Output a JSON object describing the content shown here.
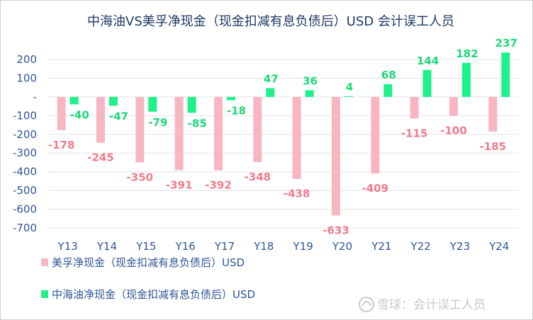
{
  "chart_data": {
    "type": "bar",
    "title": "中海油VS美孚净现金（现金扣减有息负债后）USD 会计误工人员",
    "categories": [
      "Y13",
      "Y14",
      "Y15",
      "Y16",
      "Y17",
      "Y18",
      "Y19",
      "Y20",
      "Y21",
      "Y22",
      "Y23",
      "Y24"
    ],
    "series": [
      {
        "name": "美孚净现金（现金扣减有息负债后）USD",
        "color": "#f7b6c2",
        "label_color": "#f07c8c",
        "values": [
          -178,
          -245,
          -350,
          -391,
          -392,
          -348,
          -438,
          -633,
          -409,
          -115,
          -100,
          -185
        ]
      },
      {
        "name": "中海油净现金（现金扣减有息负债后）USD",
        "color": "#1ef08a",
        "label_color": "#1ed87a",
        "values": [
          -40,
          -47,
          -79,
          -85,
          -18,
          47,
          36,
          4,
          68,
          144,
          182,
          237
        ]
      }
    ],
    "y_ticks": [
      {
        "value": 200,
        "label": "200"
      },
      {
        "value": 100,
        "label": "100"
      },
      {
        "value": 0,
        "label": "-"
      },
      {
        "value": -100,
        "label": "-100"
      },
      {
        "value": -200,
        "label": "-200"
      },
      {
        "value": -300,
        "label": "-300"
      },
      {
        "value": -400,
        "label": "-400"
      },
      {
        "value": -500,
        "label": "-500"
      },
      {
        "value": -600,
        "label": "-600"
      },
      {
        "value": -700,
        "label": "-700"
      }
    ],
    "ylim": [
      -700,
      200
    ],
    "grid": true,
    "legend_position": "bottom-left"
  },
  "watermark": "雪球：会计误工人员"
}
